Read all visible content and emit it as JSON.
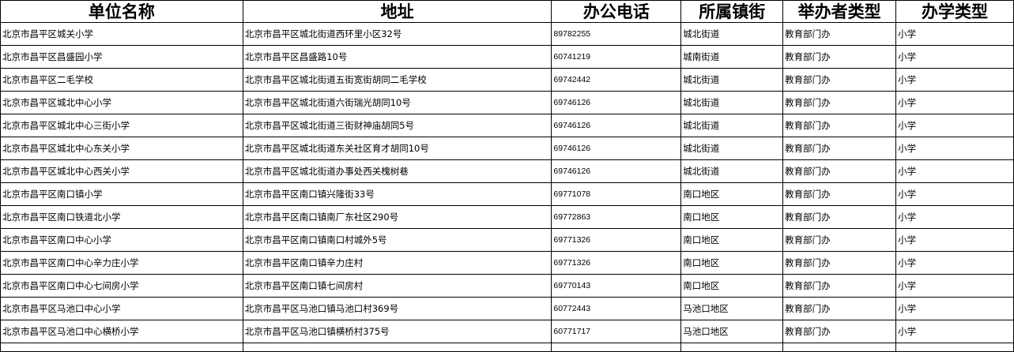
{
  "headers": [
    "单位名称",
    "地址",
    "办公电话",
    "所属镇街",
    "举办者类型",
    "办学类型"
  ],
  "rows": [
    [
      "北京市昌平区城关小学",
      "北京市昌平区城北街道西环里小区32号",
      "89782255",
      "城北街道",
      "教育部门办",
      "小学"
    ],
    [
      "北京市昌平区昌盛园小学",
      "北京市昌平区昌盛路10号",
      "60741219",
      "城南街道",
      "教育部门办",
      "小学"
    ],
    [
      "北京市昌平区二毛学校",
      "北京市昌平区城北街道五街宽街胡同二毛学校",
      "69742442",
      "城北街道",
      "教育部门办",
      "小学"
    ],
    [
      "北京市昌平区城北中心小学",
      "北京市昌平区城北街道六街瑞光胡同10号",
      "69746126",
      "城北街道",
      "教育部门办",
      "小学"
    ],
    [
      "北京市昌平区城北中心三街小学",
      "北京市昌平区城北街道三街财神庙胡同5号",
      "69746126",
      "城北街道",
      "教育部门办",
      "小学"
    ],
    [
      "北京市昌平区城北中心东关小学",
      "北京市昌平区城北街道东关社区育才胡同10号",
      "69746126",
      "城北街道",
      "教育部门办",
      "小学"
    ],
    [
      "北京市昌平区城北中心西关小学",
      "北京市昌平区城北街道办事处西关槐树巷",
      "69746126",
      "城北街道",
      "教育部门办",
      "小学"
    ],
    [
      "北京市昌平区南口镇小学",
      "北京市昌平区南口镇兴隆街33号",
      "69771078",
      "南口地区",
      "教育部门办",
      "小学"
    ],
    [
      "北京市昌平区南口铁道北小学",
      "北京市昌平区南口镇南厂东社区290号",
      "69772863",
      "南口地区",
      "教育部门办",
      "小学"
    ],
    [
      "北京市昌平区南口中心小学",
      "北京市昌平区南口镇南口村城外5号",
      "69771326",
      "南口地区",
      "教育部门办",
      "小学"
    ],
    [
      "北京市昌平区南口中心辛力庄小学",
      "北京市昌平区南口镇辛力庄村",
      "69771326",
      "南口地区",
      "教育部门办",
      "小学"
    ],
    [
      "北京市昌平区南口中心七间房小学",
      "北京市昌平区南口镇七间房村",
      "69770143",
      "南口地区",
      "教育部门办",
      "小学"
    ],
    [
      "北京市昌平区马池口中心小学",
      "北京市昌平区马池口镇马池口村369号",
      "60772443",
      "马池口地区",
      "教育部门办",
      "小学"
    ],
    [
      "北京市昌平区马池口中心横桥小学",
      "北京市昌平区马池口镇横桥村375号",
      "60771717",
      "马池口地区",
      "教育部门办",
      "小学"
    ]
  ]
}
